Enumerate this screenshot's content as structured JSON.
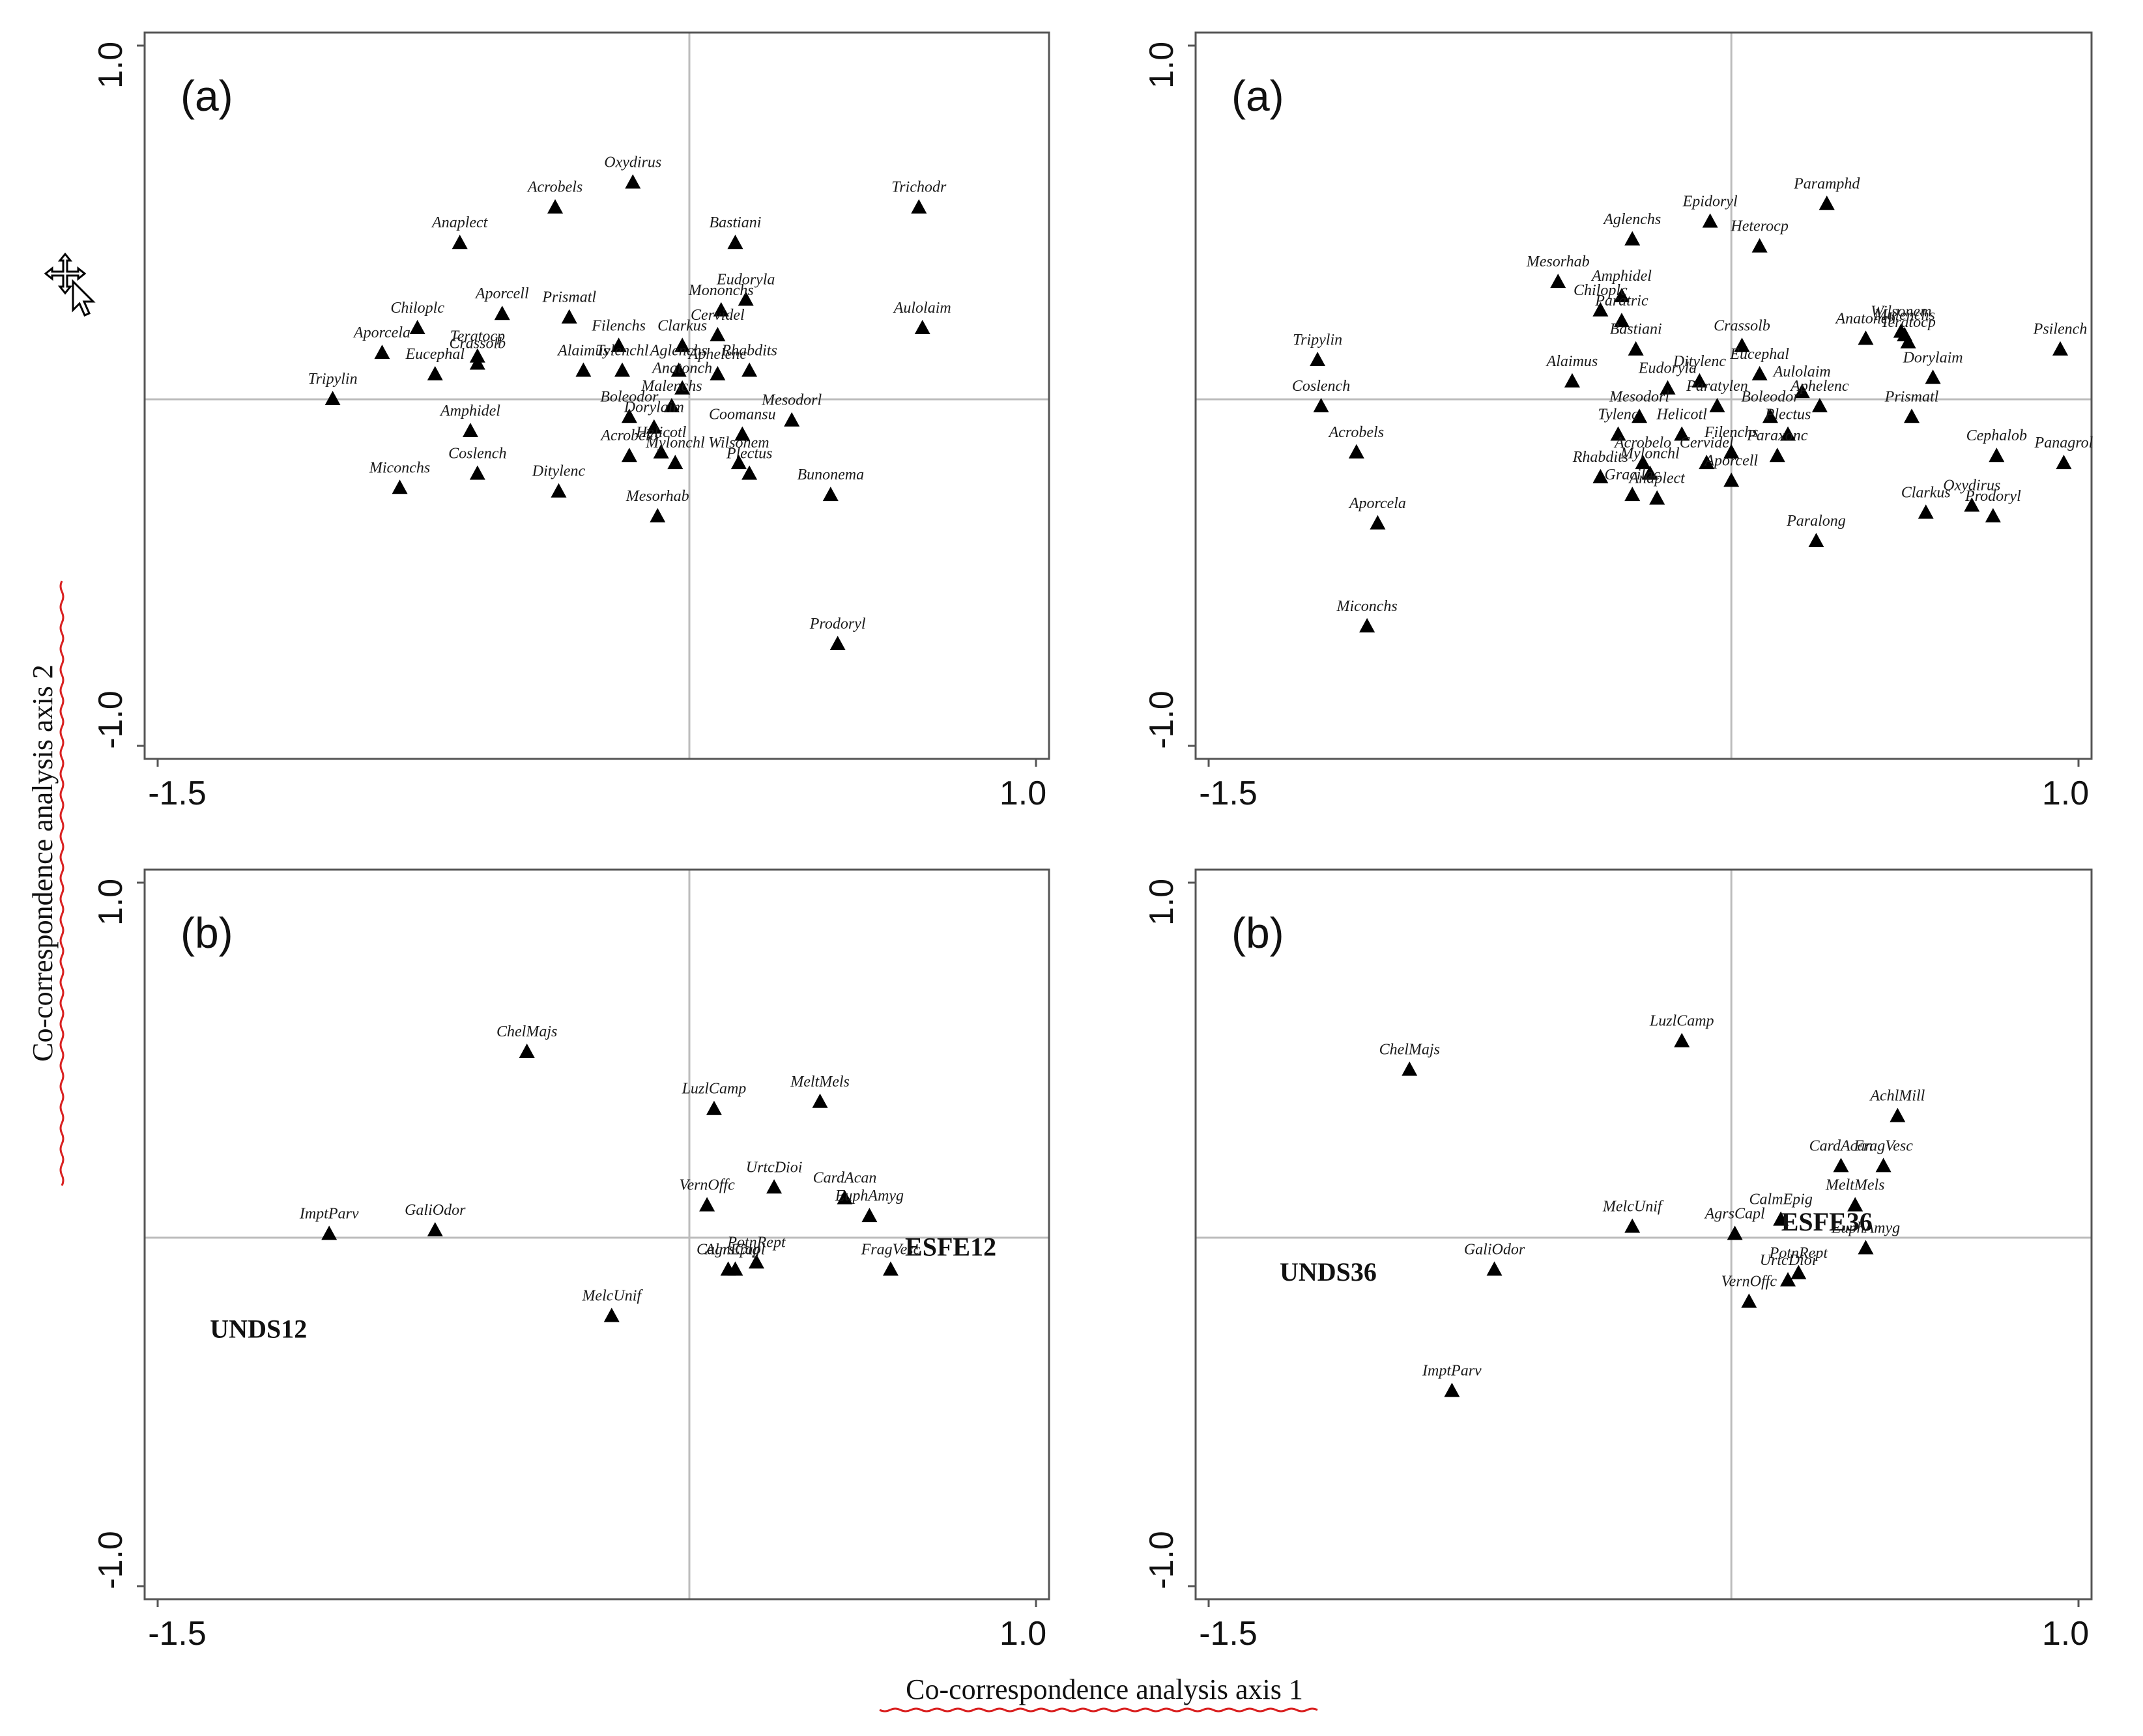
{
  "colors": {
    "marker": "#000000",
    "frame": "#555555",
    "zero_line": "#bcbcbc",
    "squiggle": "#d92020"
  },
  "figure": {
    "xlabel": "Co-correspondence analysis axis 1",
    "ylabel": "Co-correspondence analysis axis 2",
    "cursor_icon": "move-cursor-icon"
  },
  "chart_data": [
    {
      "type": "scatter",
      "panel": "(a)",
      "xlim": [
        -1.5,
        1.0
      ],
      "ylim": [
        -1.0,
        1.0
      ],
      "tick_labels": {
        "x": [
          "-1.5",
          "1.0"
        ],
        "y": [
          "1.0",
          "-1.0"
        ]
      },
      "points": [
        {
          "name": "Oxydirus",
          "x": -0.16,
          "y": 0.61
        },
        {
          "name": "Acrobels",
          "x": -0.38,
          "y": 0.54
        },
        {
          "name": "Trichodr",
          "x": 0.65,
          "y": 0.54
        },
        {
          "name": "Anaplect",
          "x": -0.65,
          "y": 0.44
        },
        {
          "name": "Bastiani",
          "x": 0.13,
          "y": 0.44
        },
        {
          "name": "Eudoryla",
          "x": 0.16,
          "y": 0.28
        },
        {
          "name": "Aporcell",
          "x": -0.53,
          "y": 0.24
        },
        {
          "name": "Prismatl",
          "x": -0.34,
          "y": 0.23
        },
        {
          "name": "Mononchs",
          "x": 0.09,
          "y": 0.25
        },
        {
          "name": "Chiloplc",
          "x": -0.77,
          "y": 0.2
        },
        {
          "name": "Aulolaim",
          "x": 0.66,
          "y": 0.2
        },
        {
          "name": "Clarkus",
          "x": -0.02,
          "y": 0.15
        },
        {
          "name": "Filenchs",
          "x": -0.2,
          "y": 0.15
        },
        {
          "name": "Cervidel",
          "x": 0.08,
          "y": 0.18
        },
        {
          "name": "Teratocp",
          "x": -0.6,
          "y": 0.12
        },
        {
          "name": "Crassolb",
          "x": -0.6,
          "y": 0.1
        },
        {
          "name": "Aporcela",
          "x": -0.87,
          "y": 0.13
        },
        {
          "name": "Tylenchl",
          "x": -0.19,
          "y": 0.08
        },
        {
          "name": "Alaimus",
          "x": -0.3,
          "y": 0.08
        },
        {
          "name": "Aglenchs",
          "x": -0.03,
          "y": 0.08
        },
        {
          "name": "Rhabdits",
          "x": 0.17,
          "y": 0.08
        },
        {
          "name": "Eucephal",
          "x": -0.72,
          "y": 0.07
        },
        {
          "name": "Tripylin",
          "x": -1.01,
          "y": 0.0
        },
        {
          "name": "Anatonch",
          "x": -0.02,
          "y": 0.03
        },
        {
          "name": "Aphelenc",
          "x": 0.08,
          "y": 0.07
        },
        {
          "name": "Boleodor",
          "x": -0.17,
          "y": -0.05
        },
        {
          "name": "Malenchs",
          "x": -0.05,
          "y": -0.02
        },
        {
          "name": "Mesodorl",
          "x": 0.29,
          "y": -0.06
        },
        {
          "name": "Amphidel",
          "x": -0.62,
          "y": -0.09
        },
        {
          "name": "Dorylaim",
          "x": -0.1,
          "y": -0.08
        },
        {
          "name": "Coomansu",
          "x": 0.15,
          "y": -0.1
        },
        {
          "name": "Acrobelo",
          "x": -0.17,
          "y": -0.16
        },
        {
          "name": "Helicotl",
          "x": -0.08,
          "y": -0.15
        },
        {
          "name": "Plectus",
          "x": 0.17,
          "y": -0.21
        },
        {
          "name": "Coslench",
          "x": -0.6,
          "y": -0.21
        },
        {
          "name": "Mylonchl",
          "x": -0.04,
          "y": -0.18
        },
        {
          "name": "Miconchs",
          "x": -0.82,
          "y": -0.25
        },
        {
          "name": "Ditylenc",
          "x": -0.37,
          "y": -0.26
        },
        {
          "name": "Wilsonem",
          "x": 0.14,
          "y": -0.18
        },
        {
          "name": "Bunonema",
          "x": 0.4,
          "y": -0.27
        },
        {
          "name": "Mesorhab",
          "x": -0.09,
          "y": -0.33
        },
        {
          "name": "Prodoryl",
          "x": 0.42,
          "y": -0.69
        }
      ],
      "zero_x": 0.0,
      "zero_y": 0.0
    },
    {
      "type": "scatter",
      "panel": "(a)",
      "xlim": [
        -1.5,
        1.0
      ],
      "ylim": [
        -1.0,
        1.0
      ],
      "tick_labels": {
        "x": [
          "-1.5",
          "1.0"
        ],
        "y": [
          "1.0",
          "-1.0"
        ]
      },
      "points": [
        {
          "name": "Paramphd",
          "x": 0.27,
          "y": 0.55
        },
        {
          "name": "Epidoryl",
          "x": -0.06,
          "y": 0.5
        },
        {
          "name": "Aglenchs",
          "x": -0.28,
          "y": 0.45
        },
        {
          "name": "Heterocp",
          "x": 0.08,
          "y": 0.43
        },
        {
          "name": "Mesorhab",
          "x": -0.49,
          "y": 0.33
        },
        {
          "name": "Amphidel",
          "x": -0.31,
          "y": 0.29
        },
        {
          "name": "Chiloplc",
          "x": -0.37,
          "y": 0.25
        },
        {
          "name": "Paratric",
          "x": -0.31,
          "y": 0.22
        },
        {
          "name": "Crassolb",
          "x": 0.03,
          "y": 0.15
        },
        {
          "name": "Anatonch",
          "x": 0.38,
          "y": 0.17
        },
        {
          "name": "Wilsonem",
          "x": 0.48,
          "y": 0.19
        },
        {
          "name": "Malenchs",
          "x": 0.49,
          "y": 0.18
        },
        {
          "name": "Teratocp",
          "x": 0.5,
          "y": 0.16
        },
        {
          "name": "Psilench",
          "x": 0.93,
          "y": 0.14
        },
        {
          "name": "Tripylin",
          "x": -1.17,
          "y": 0.11
        },
        {
          "name": "Bastiani",
          "x": -0.27,
          "y": 0.14
        },
        {
          "name": "Eucephal",
          "x": 0.08,
          "y": 0.07
        },
        {
          "name": "Alaimus",
          "x": -0.45,
          "y": 0.05
        },
        {
          "name": "Ditylenc",
          "x": -0.09,
          "y": 0.05
        },
        {
          "name": "Aulolaim",
          "x": 0.2,
          "y": 0.02
        },
        {
          "name": "Dorylaim",
          "x": 0.57,
          "y": 0.06
        },
        {
          "name": "Coslench",
          "x": -1.16,
          "y": -0.02
        },
        {
          "name": "Eudoryla",
          "x": -0.18,
          "y": 0.03
        },
        {
          "name": "Paratylen",
          "x": -0.04,
          "y": -0.02
        },
        {
          "name": "Boleodor",
          "x": 0.11,
          "y": -0.05
        },
        {
          "name": "Mesodorl",
          "x": -0.26,
          "y": -0.05
        },
        {
          "name": "Aphelenc",
          "x": 0.25,
          "y": -0.02
        },
        {
          "name": "Prismatl",
          "x": 0.51,
          "y": -0.05
        },
        {
          "name": "Tylenc",
          "x": -0.32,
          "y": -0.1
        },
        {
          "name": "Helicotl",
          "x": -0.14,
          "y": -0.1
        },
        {
          "name": "Plectus",
          "x": 0.16,
          "y": -0.1
        },
        {
          "name": "Acrobels",
          "x": -1.06,
          "y": -0.15
        },
        {
          "name": "Cephalob",
          "x": 0.75,
          "y": -0.16
        },
        {
          "name": "Acrobelo",
          "x": -0.25,
          "y": -0.18
        },
        {
          "name": "Cervidel",
          "x": -0.07,
          "y": -0.18
        },
        {
          "name": "Filenchs",
          "x": 0.0,
          "y": -0.15
        },
        {
          "name": "Paraxonc",
          "x": 0.13,
          "y": -0.16
        },
        {
          "name": "Panagrol",
          "x": 0.94,
          "y": -0.18
        },
        {
          "name": "Rhabdits",
          "x": -0.37,
          "y": -0.22
        },
        {
          "name": "Mylonchl",
          "x": -0.23,
          "y": -0.21
        },
        {
          "name": "Aporcell",
          "x": 0.0,
          "y": -0.23
        },
        {
          "name": "Gracilac",
          "x": -0.28,
          "y": -0.27
        },
        {
          "name": "Anaplect",
          "x": -0.21,
          "y": -0.28
        },
        {
          "name": "Clarkus",
          "x": 0.55,
          "y": -0.32
        },
        {
          "name": "Oxydirus",
          "x": 0.68,
          "y": -0.3
        },
        {
          "name": "Prodoryl",
          "x": 0.74,
          "y": -0.33
        },
        {
          "name": "Aporcela",
          "x": -1.0,
          "y": -0.35
        },
        {
          "name": "Paralong",
          "x": 0.24,
          "y": -0.4
        },
        {
          "name": "Miconchs",
          "x": -1.03,
          "y": -0.64
        }
      ],
      "zero_x": 0.0,
      "zero_y": 0.0
    },
    {
      "type": "scatter",
      "panel": "(b)",
      "xlim": [
        -1.5,
        1.0
      ],
      "ylim": [
        -1.0,
        1.0
      ],
      "tick_labels": {
        "x": [
          "-1.5",
          "1.0"
        ],
        "y": [
          "1.0",
          "-1.0"
        ]
      },
      "points": [
        {
          "name": "ChelMajs",
          "x": -0.46,
          "y": 0.52
        },
        {
          "name": "MeltMels",
          "x": 0.37,
          "y": 0.38
        },
        {
          "name": "LuzlCamp",
          "x": 0.07,
          "y": 0.36
        },
        {
          "name": "VernOffc",
          "x": 0.05,
          "y": 0.09
        },
        {
          "name": "UrtcDioi",
          "x": 0.24,
          "y": 0.14
        },
        {
          "name": "CardAcan",
          "x": 0.44,
          "y": 0.11
        },
        {
          "name": "EuphAmyg",
          "x": 0.51,
          "y": 0.06
        },
        {
          "name": "ImptParv",
          "x": -1.02,
          "y": 0.01
        },
        {
          "name": "GaliOdor",
          "x": -0.72,
          "y": 0.02
        },
        {
          "name": "PotnRept",
          "x": 0.19,
          "y": -0.07
        },
        {
          "name": "AgrsCapl",
          "x": 0.13,
          "y": -0.09
        },
        {
          "name": "CalmEpig",
          "x": 0.11,
          "y": -0.09
        },
        {
          "name": "FragVesc",
          "x": 0.57,
          "y": -0.09
        },
        {
          "name": "MelcUnif",
          "x": -0.22,
          "y": -0.22
        }
      ],
      "sites": [
        {
          "name": "ESFE12",
          "x": 0.74,
          "y": -0.05
        },
        {
          "name": "UNDS12",
          "x": -1.22,
          "y": -0.28
        }
      ],
      "zero_x": 0.0,
      "zero_y": 0.0
    },
    {
      "type": "scatter",
      "panel": "(b)",
      "xlim": [
        -1.5,
        1.0
      ],
      "ylim": [
        -1.0,
        1.0
      ],
      "tick_labels": {
        "x": [
          "-1.5",
          "1.0"
        ],
        "y": [
          "1.0",
          "-1.0"
        ]
      },
      "points": [
        {
          "name": "LuzlCamp",
          "x": -0.14,
          "y": 0.55
        },
        {
          "name": "ChelMajs",
          "x": -0.91,
          "y": 0.47
        },
        {
          "name": "AchlMill",
          "x": 0.47,
          "y": 0.34
        },
        {
          "name": "CardAcan",
          "x": 0.31,
          "y": 0.2
        },
        {
          "name": "FragVesc",
          "x": 0.43,
          "y": 0.2
        },
        {
          "name": "MeltMels",
          "x": 0.35,
          "y": 0.09
        },
        {
          "name": "CalmEpig",
          "x": 0.14,
          "y": 0.05
        },
        {
          "name": "MelcUnif",
          "x": -0.28,
          "y": 0.03
        },
        {
          "name": "AgrsCapl",
          "x": 0.01,
          "y": 0.01
        },
        {
          "name": "EuphAmyg",
          "x": 0.38,
          "y": -0.03
        },
        {
          "name": "PotnRept",
          "x": 0.19,
          "y": -0.1
        },
        {
          "name": "UrtcDioi",
          "x": 0.16,
          "y": -0.12
        },
        {
          "name": "VernOffc",
          "x": 0.05,
          "y": -0.18
        },
        {
          "name": "GaliOdor",
          "x": -0.67,
          "y": -0.09
        },
        {
          "name": "ImptParv",
          "x": -0.79,
          "y": -0.43
        }
      ],
      "sites": [
        {
          "name": "ESFE36",
          "x": 0.27,
          "y": 0.02
        },
        {
          "name": "UNDS36",
          "x": -1.14,
          "y": -0.12
        }
      ],
      "zero_x": 0.0,
      "zero_y": 0.0
    }
  ]
}
